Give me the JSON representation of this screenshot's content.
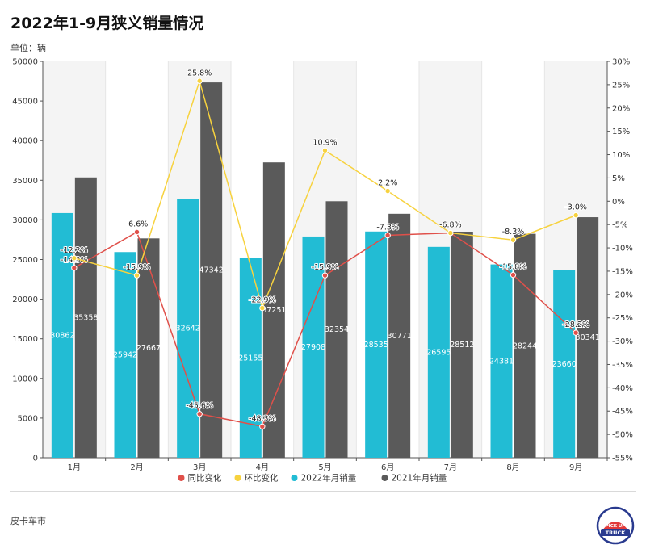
{
  "page": {
    "title": "2022年1-9月狭义销量情况",
    "unit": "单位：辆",
    "source": "皮卡车市",
    "logo_text": "PICK-UP TRUCK"
  },
  "colors": {
    "bar_2022": "#22bcd4",
    "bar_2021": "#5a5a5a",
    "line_yoy": "#e0504a",
    "line_mom": "#f7d23e",
    "grid": "#e4e4e4"
  },
  "chart_data": {
    "type": "bar",
    "categories": [
      "1月",
      "2月",
      "3月",
      "4月",
      "5月",
      "6月",
      "7月",
      "8月",
      "9月"
    ],
    "series": [
      {
        "name": "2022年月销量",
        "kind": "bar",
        "axis": "left",
        "color": "#22bcd4",
        "values": [
          30862,
          25942,
          32642,
          25155,
          27908,
          28535,
          26595,
          24381,
          23660
        ]
      },
      {
        "name": "2021年月销量",
        "kind": "bar",
        "axis": "left",
        "color": "#5a5a5a",
        "values": [
          35358,
          27667,
          47342,
          37251,
          32354,
          30771,
          28512,
          28244,
          30341
        ]
      },
      {
        "name": "同比变化",
        "kind": "line",
        "axis": "right",
        "color": "#e0504a",
        "values": [
          -14.3,
          -6.6,
          -45.6,
          -48.3,
          -15.9,
          -7.3,
          -6.8,
          -15.8,
          -28.2
        ],
        "labels": [
          "-14.3%",
          "-6.6%",
          "-45.6%",
          "-48.3%",
          "-15.9%",
          "-7.3%",
          "-6.8%",
          "-15.8%",
          "-28.2%"
        ]
      },
      {
        "name": "环比变化",
        "kind": "line",
        "axis": "right",
        "color": "#f7d23e",
        "values": [
          -12.2,
          -15.9,
          25.8,
          -22.9,
          10.9,
          2.2,
          -6.8,
          -8.3,
          -3.0
        ],
        "labels": [
          "-12.2%",
          "-15.9%",
          "25.8%",
          "-22.9%",
          "10.9%",
          "2.2%",
          "-6.8%",
          "-8.3%",
          "-3.0%"
        ]
      }
    ],
    "y_left": {
      "min": 0,
      "max": 50000,
      "step": 5000,
      "ticks": [
        "0",
        "5000",
        "10000",
        "15000",
        "20000",
        "25000",
        "30000",
        "35000",
        "40000",
        "45000",
        "50000"
      ]
    },
    "y_right": {
      "min": -55,
      "max": 30,
      "step": 5,
      "ticks": [
        "-55%",
        "-50%",
        "-45%",
        "-40%",
        "-35%",
        "-30%",
        "-25%",
        "-20%",
        "-15%",
        "-10%",
        "-5%",
        "0%",
        "5%",
        "10%",
        "15%",
        "20%",
        "25%",
        "30%"
      ]
    },
    "legend": {
      "placement": "bottom",
      "items": [
        {
          "name": "同比变化",
          "color": "#e0504a"
        },
        {
          "name": "环比变化",
          "color": "#f7d23e"
        },
        {
          "name": "2022年月销量",
          "color": "#22bcd4"
        },
        {
          "name": "2021年月销量",
          "color": "#5a5a5a"
        }
      ]
    },
    "grid": true
  }
}
